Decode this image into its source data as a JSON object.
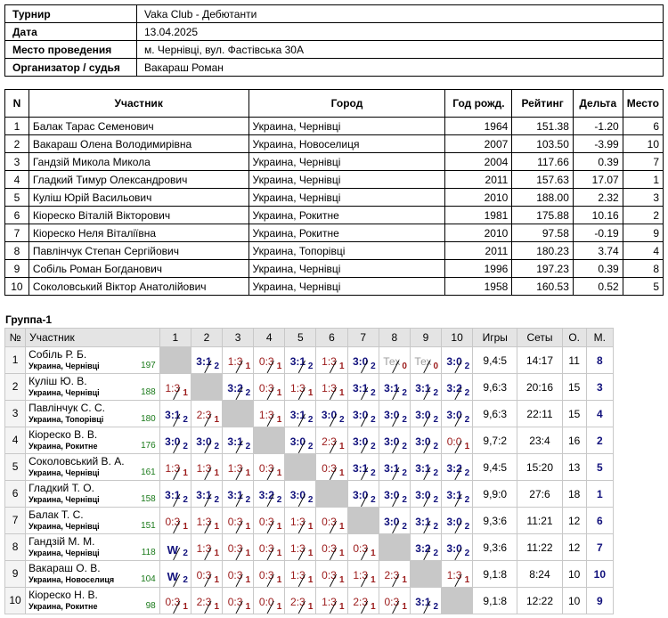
{
  "info": [
    {
      "label": "Турнир",
      "value": "Vaka Club - Дебютанти"
    },
    {
      "label": "Дата",
      "value": "13.04.2025"
    },
    {
      "label": "Место проведения",
      "value": "м. Чернівці, вул. Фастівська 30А"
    },
    {
      "label": "Организатор / судья",
      "value": "Вакараш Роман"
    }
  ],
  "players_headers": [
    "N",
    "Участник",
    "Город",
    "Год рожд.",
    "Рейтинг",
    "Дельта",
    "Место"
  ],
  "players": [
    [
      "1",
      "Балак Тарас Семенович",
      "Украина, Чернівці",
      "1964",
      "151.38",
      "-1.20",
      "6"
    ],
    [
      "2",
      "Вакараш Олена Володимирівна",
      "Украина, Новоселиця",
      "2007",
      "103.50",
      "-3.99",
      "10"
    ],
    [
      "3",
      "Гандзій Микола Микола",
      "Украина, Чернівці",
      "2004",
      "117.66",
      "0.39",
      "7"
    ],
    [
      "4",
      "Гладкий Тимур Олександрович",
      "Украина, Чернівці",
      "2011",
      "157.63",
      "17.07",
      "1"
    ],
    [
      "5",
      "Куліш Юрій Васильович",
      "Украина, Чернівці",
      "2010",
      "188.00",
      "2.32",
      "3"
    ],
    [
      "6",
      "Кіореско Віталій Вікторович",
      "Украина, Рокитне",
      "1981",
      "175.88",
      "10.16",
      "2"
    ],
    [
      "7",
      "Кіореско Неля Віталіївна",
      "Украина, Рокитне",
      "2010",
      "97.58",
      "-0.19",
      "9"
    ],
    [
      "8",
      "Павлінчук Степан Сергійович",
      "Украина, Топорівці",
      "2011",
      "180.23",
      "3.74",
      "4"
    ],
    [
      "9",
      "Собіль Роман Богданович",
      "Украина, Чернівці",
      "1996",
      "197.23",
      "0.39",
      "8"
    ],
    [
      "10",
      "Соколовський Віктор Анатолійович",
      "Украина, Чернівці",
      "1958",
      "160.53",
      "0.52",
      "5"
    ]
  ],
  "group_title": "Группа-1",
  "cross_headers": {
    "num": "№",
    "player": "Участник",
    "cols": [
      "1",
      "2",
      "3",
      "4",
      "5",
      "6",
      "7",
      "8",
      "9",
      "10"
    ],
    "games": "Игры",
    "sets": "Сеты",
    "points": "О.",
    "place": "М."
  },
  "cross": [
    {
      "n": "1",
      "name": "Собіль Р. Б.",
      "city": "Украина, Чернівці",
      "rating": "197",
      "cells": [
        "",
        "3:1|2",
        "1:3|1",
        "0:3|1",
        "3:1|2",
        "1:3|1",
        "3:0|2",
        "Тех|0",
        "Тех|0",
        "3:0|2"
      ],
      "games": "9,4:5",
      "sets": "14:17",
      "points": "11",
      "place": "8"
    },
    {
      "n": "2",
      "name": "Куліш Ю. В.",
      "city": "Украина, Чернівці",
      "rating": "188",
      "cells": [
        "1:3|1",
        "",
        "3:2|2",
        "0:3|1",
        "1:3|1",
        "1:3|1",
        "3:1|2",
        "3:1|2",
        "3:1|2",
        "3:2|2"
      ],
      "games": "9,6:3",
      "sets": "20:16",
      "points": "15",
      "place": "3"
    },
    {
      "n": "3",
      "name": "Павлінчук С. С.",
      "city": "Украина, Топорівці",
      "rating": "180",
      "cells": [
        "3:1|2",
        "2:3|1",
        "",
        "1:3|1",
        "3:1|2",
        "3:0|2",
        "3:0|2",
        "3:0|2",
        "3:0|2",
        "3:0|2"
      ],
      "games": "9,6:3",
      "sets": "22:11",
      "points": "15",
      "place": "4"
    },
    {
      "n": "4",
      "name": "Кіореско В. В.",
      "city": "Украина, Рокитне",
      "rating": "176",
      "cells": [
        "3:0|2",
        "3:0|2",
        "3:1|2",
        "",
        "3:0|2",
        "2:3|1",
        "3:0|2",
        "3:0|2",
        "3:0|2",
        "0:0|1"
      ],
      "games": "9,7:2",
      "sets": "23:4",
      "points": "16",
      "place": "2"
    },
    {
      "n": "5",
      "name": "Соколовський В. А.",
      "city": "Украина, Чернівці",
      "rating": "161",
      "cells": [
        "1:3|1",
        "1:3|1",
        "1:3|1",
        "0:3|1",
        "",
        "0:3|1",
        "3:1|2",
        "3:1|2",
        "3:1|2",
        "3:2|2"
      ],
      "games": "9,4:5",
      "sets": "15:20",
      "points": "13",
      "place": "5"
    },
    {
      "n": "6",
      "name": "Гладкий Т. О.",
      "city": "Украина, Чернівці",
      "rating": "158",
      "cells": [
        "3:1|2",
        "3:1|2",
        "3:1|2",
        "3:2|2",
        "3:0|2",
        "",
        "3:0|2",
        "3:0|2",
        "3:0|2",
        "3:1|2"
      ],
      "games": "9,9:0",
      "sets": "27:6",
      "points": "18",
      "place": "1"
    },
    {
      "n": "7",
      "name": "Балак Т. С.",
      "city": "Украина, Чернівці",
      "rating": "151",
      "cells": [
        "0:3|1",
        "1:3|1",
        "0:3|1",
        "0:3|1",
        "1:3|1",
        "0:3|1",
        "",
        "3:0|2",
        "3:1|2",
        "3:0|2"
      ],
      "games": "9,3:6",
      "sets": "11:21",
      "points": "12",
      "place": "6"
    },
    {
      "n": "8",
      "name": "Гандзій М. М.",
      "city": "Украина, Чернівці",
      "rating": "118",
      "cells": [
        "W|2",
        "1:3|1",
        "0:3|1",
        "0:3|1",
        "1:3|1",
        "0:3|1",
        "0:3|1",
        "",
        "3:2|2",
        "3:0|2"
      ],
      "games": "9,3:6",
      "sets": "11:22",
      "points": "12",
      "place": "7"
    },
    {
      "n": "9",
      "name": "Вакараш О. В.",
      "city": "Украина, Новоселиця",
      "rating": "104",
      "cells": [
        "W|2",
        "0:3|1",
        "0:3|1",
        "0:3|1",
        "1:3|1",
        "0:3|1",
        "1:3|1",
        "2:3|1",
        "",
        "1:3|1"
      ],
      "games": "9,1:8",
      "sets": "8:24",
      "points": "10",
      "place": "10"
    },
    {
      "n": "10",
      "name": "Кіореско Н. В.",
      "city": "Украина, Рокитне",
      "rating": "98",
      "cells": [
        "0:3|1",
        "2:3|1",
        "0:3|1",
        "0:0|1",
        "2:3|1",
        "1:3|1",
        "2:3|1",
        "0:3|1",
        "3:1|2",
        ""
      ],
      "games": "9,1:8",
      "sets": "12:22",
      "points": "10",
      "place": "9"
    }
  ]
}
